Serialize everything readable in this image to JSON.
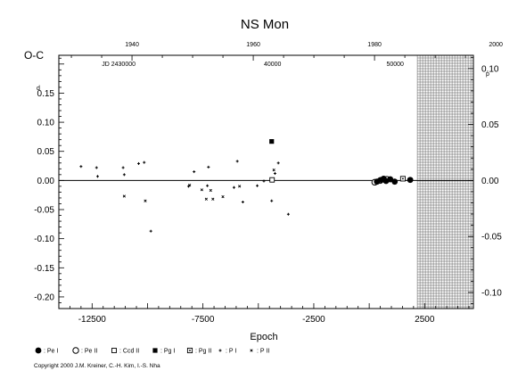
{
  "chart_data": {
    "type": "scatter",
    "title": "NS Mon",
    "xlabel": "Epoch",
    "ylabel": "O-C",
    "ylabel_unit": "d",
    "right_unit": "p",
    "xlim": [
      -14000,
      4700
    ],
    "ylim": [
      -0.22,
      0.215
    ],
    "x_ticks": [
      -12500,
      -7500,
      -2500,
      2500
    ],
    "x_tick_labels": [
      "-12500",
      "-7500",
      "-2500",
      "2500"
    ],
    "y_ticks": [
      -0.2,
      -0.15,
      -0.1,
      -0.05,
      0.0,
      0.05,
      0.1,
      0.15
    ],
    "y_tick_labels": [
      "-0.20",
      "-0.15",
      "-0.10",
      "-0.05",
      "0.00",
      "0.05",
      "0.10",
      "0.15"
    ],
    "right_ticks": [
      -0.1,
      -0.05,
      0.0,
      0.05,
      0.1
    ],
    "right_tick_labels": [
      "-0.10",
      "-0.05",
      "0.00",
      "0.05",
      "0.10"
    ],
    "right_per_left": 0.52,
    "top_axis": {
      "year_ticks": [
        1940,
        1960,
        1980,
        2000
      ],
      "year_epochs": [
        -10700,
        -5230,
        240,
        5710
      ],
      "jd_label": "JD 2430000",
      "jd_ticks": [
        40000,
        50000
      ],
      "jd_label_epoch": -11300,
      "jd_epochs": [
        -4360,
        1170
      ]
    },
    "zero_line": true,
    "hatched_region": {
      "from_epoch": 2170,
      "to_epoch": 4700
    },
    "legend": [
      {
        "symbol": "filled-circle",
        "label": ": Pe I"
      },
      {
        "symbol": "open-circle",
        "label": ": Pe II"
      },
      {
        "symbol": "open-square",
        "label": ": Ccd II"
      },
      {
        "symbol": "filled-square",
        "label": ": Pg I"
      },
      {
        "symbol": "dotted-square",
        "label": ": Pg II"
      },
      {
        "symbol": "plus",
        "label": ": P I"
      },
      {
        "symbol": "cross",
        "label": ": P II"
      }
    ],
    "series": [
      {
        "name": ": P I",
        "symbol": "plus",
        "points": [
          [
            -13000,
            0.024
          ],
          [
            -12300,
            0.022
          ],
          [
            -12250,
            0.007
          ],
          [
            -11100,
            0.022
          ],
          [
            -11050,
            0.01
          ],
          [
            -10400,
            0.029
          ],
          [
            -10150,
            0.031
          ],
          [
            -9850,
            -0.087
          ],
          [
            -8150,
            -0.01
          ],
          [
            -7900,
            0.015
          ],
          [
            -7300,
            -0.009
          ],
          [
            -7250,
            0.023
          ],
          [
            -6100,
            -0.012
          ],
          [
            -5950,
            0.033
          ],
          [
            -5700,
            -0.037
          ],
          [
            -5050,
            -0.009
          ],
          [
            -4750,
            -0.001
          ],
          [
            -4250,
            0.012
          ],
          [
            -4100,
            0.03
          ],
          [
            -3650,
            -0.058
          ],
          [
            -4400,
            -0.035
          ]
        ]
      },
      {
        "name": ": P II",
        "symbol": "cross",
        "points": [
          [
            -11050,
            -0.027
          ],
          [
            -10100,
            -0.035
          ],
          [
            -8100,
            -0.008
          ],
          [
            -7550,
            -0.016
          ],
          [
            -7350,
            -0.032
          ],
          [
            -7150,
            -0.017
          ],
          [
            -7050,
            -0.032
          ],
          [
            -6600,
            -0.028
          ],
          [
            -5850,
            -0.01
          ],
          [
            -4300,
            0.018
          ]
        ]
      },
      {
        "name": ": Pg I",
        "symbol": "filled-square",
        "points": [
          [
            -4400,
            0.067
          ]
        ]
      },
      {
        "name": ": Ccd II",
        "symbol": "open-square",
        "points": [
          [
            -4380,
            0.001
          ]
        ]
      },
      {
        "name": ": Pg II",
        "symbol": "dotted-square",
        "points": [
          [
            1520,
            0.003
          ]
        ]
      },
      {
        "name": ": Pe II",
        "symbol": "open-circle",
        "points": [
          [
            250,
            -0.003
          ],
          [
            500,
            0.0
          ],
          [
            800,
            0.002
          ]
        ]
      },
      {
        "name": ": Pe I",
        "symbol": "filled-circle",
        "points": [
          [
            350,
            -0.002
          ],
          [
            550,
            0.001
          ],
          [
            650,
            0.003
          ],
          [
            760,
            -0.001
          ],
          [
            950,
            0.002
          ],
          [
            1150,
            -0.002
          ],
          [
            1850,
            0.001
          ]
        ]
      }
    ]
  },
  "footer": {
    "copyright": "Copyright 2000 J.M. Kreiner, C.-H. Kim, I.-S. Nha"
  }
}
